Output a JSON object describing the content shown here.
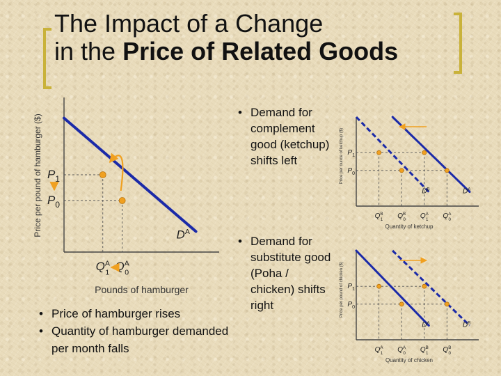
{
  "title": {
    "line1": "The Impact of a Change",
    "line2_plain": "in the ",
    "line2_bold": "Price of Related Goods"
  },
  "colors": {
    "curve": "#1b2aa8",
    "point": "#f0a020",
    "arrow": "#f0a020",
    "bracket": "#c9b23a"
  },
  "bullets": {
    "main": [
      "Price of hamburger rises",
      "Quantity of hamburger demanded per month falls"
    ],
    "complement": [
      "Demand for complement good (ketchup) shifts left"
    ],
    "substitute": [
      "Demand for substitute good (Poha / chicken) shifts right"
    ]
  },
  "chart_data": [
    {
      "type": "line",
      "ylabel": "Price per pound of hamburger ($)",
      "xlabel": "Pounds of hamburger",
      "y_ticks": [
        {
          "base": "P",
          "sub": "1",
          "value": 3
        },
        {
          "base": "P",
          "sub": "0",
          "value": 2
        }
      ],
      "x_ticks": [
        {
          "base": "Q",
          "sub": "1",
          "sup": "A",
          "value": 2
        },
        {
          "base": "Q",
          "sub": "0",
          "sup": "A",
          "value": 3
        }
      ],
      "series": [
        {
          "name": "DA",
          "label_base": "D",
          "label_sup": "A",
          "x": [
            0,
            6.8
          ],
          "y": [
            5.2,
            0.8
          ]
        }
      ],
      "points": [
        {
          "x": 2,
          "y": 3
        },
        {
          "x": 3,
          "y": 2
        }
      ],
      "annotation": "arrows: price rises P0 to P1, quantity falls Q0 to Q1",
      "xlim": [
        0,
        8
      ],
      "ylim": [
        0,
        6
      ]
    },
    {
      "type": "line",
      "ylabel": "Price per ounce of ketchup ($)",
      "xlabel": "Quantity of ketchup",
      "y_ticks": [
        {
          "base": "P",
          "sub": "1",
          "value": 3
        },
        {
          "base": "P",
          "sub": "0",
          "value": 2
        }
      ],
      "x_ticks": [
        {
          "base": "Q",
          "sub": "1",
          "sup": "B",
          "value": 1
        },
        {
          "base": "Q",
          "sub": "0",
          "sup": "B",
          "value": 2
        },
        {
          "base": "Q",
          "sub": "1",
          "sup": "A",
          "value": 3
        },
        {
          "base": "Q",
          "sub": "0",
          "sup": "A",
          "value": 4
        }
      ],
      "series": [
        {
          "name": "DB",
          "label_base": "D",
          "label_sup": "B",
          "style": "dashed",
          "x": [
            0,
            3.2
          ],
          "y": [
            5,
            0.8
          ]
        },
        {
          "name": "DA",
          "label_base": "D",
          "label_sup": "A",
          "style": "solid",
          "x": [
            1.6,
            5
          ],
          "y": [
            5,
            0.8
          ]
        }
      ],
      "points": [
        {
          "x": 1,
          "y": 3
        },
        {
          "x": 2,
          "y": 2
        },
        {
          "x": 3,
          "y": 3
        },
        {
          "x": 4,
          "y": 2
        }
      ],
      "shift": "left",
      "xlim": [
        0,
        5.4
      ],
      "ylim": [
        0,
        5
      ]
    },
    {
      "type": "line",
      "ylabel": "Price per pound of chicken ($)",
      "xlabel": "Quantity of chicken",
      "y_ticks": [
        {
          "base": "P",
          "sub": "1",
          "value": 3
        },
        {
          "base": "P",
          "sub": "0",
          "value": 2
        }
      ],
      "x_ticks": [
        {
          "base": "Q",
          "sub": "1",
          "sup": "A",
          "value": 1
        },
        {
          "base": "Q",
          "sub": "0",
          "sup": "A",
          "value": 2
        },
        {
          "base": "Q",
          "sub": "1",
          "sup": "B",
          "value": 3
        },
        {
          "base": "Q",
          "sub": "0",
          "sup": "B",
          "value": 4
        }
      ],
      "series": [
        {
          "name": "DA",
          "label_base": "D",
          "label_sup": "A",
          "style": "solid",
          "x": [
            0,
            3.2
          ],
          "y": [
            5,
            0.8
          ]
        },
        {
          "name": "DB",
          "label_base": "D",
          "label_sup": "B",
          "style": "dashed",
          "x": [
            1.6,
            5
          ],
          "y": [
            5,
            0.8
          ]
        }
      ],
      "points": [
        {
          "x": 1,
          "y": 3
        },
        {
          "x": 2,
          "y": 2
        },
        {
          "x": 3,
          "y": 3
        },
        {
          "x": 4,
          "y": 2
        }
      ],
      "shift": "right",
      "xlim": [
        0,
        5.4
      ],
      "ylim": [
        0,
        5
      ]
    }
  ]
}
